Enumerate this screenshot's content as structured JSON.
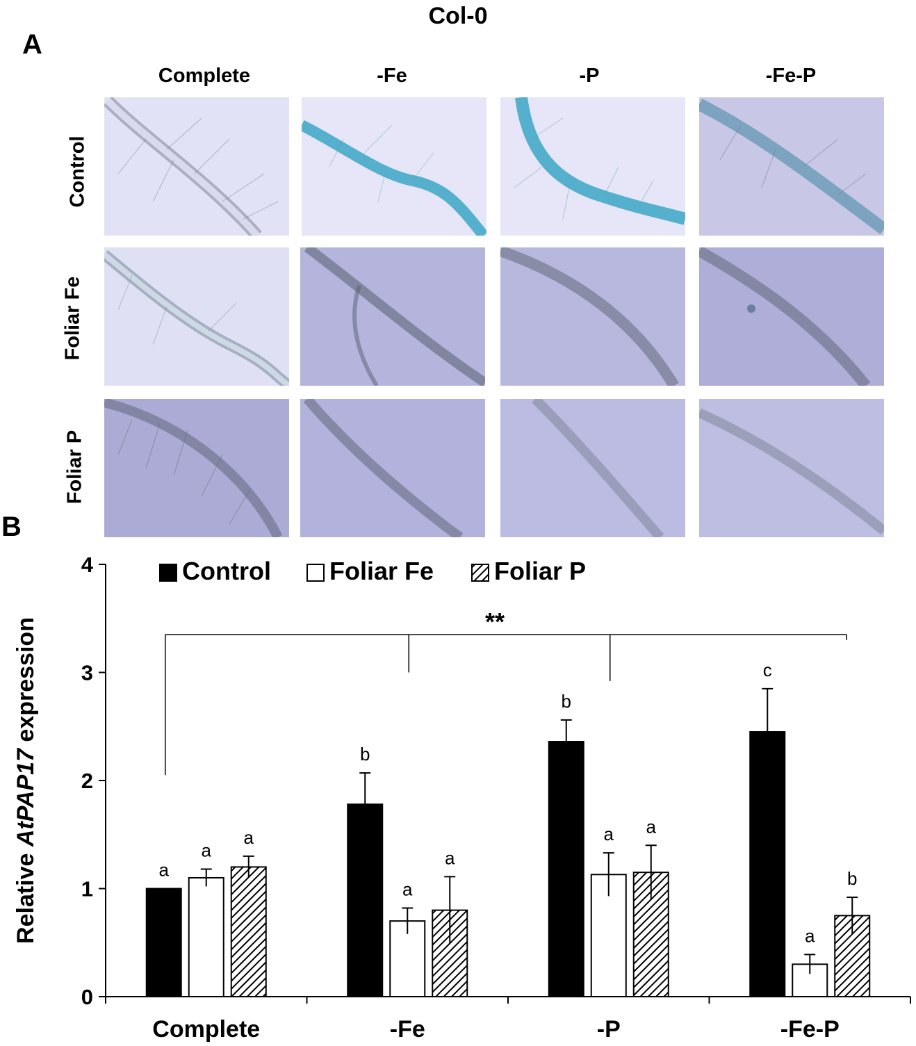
{
  "figure_title": "Col-0",
  "panel_a": {
    "letter": "A",
    "columns": [
      "Complete",
      "-Fe",
      "-P",
      "-Fe-P"
    ],
    "rows": [
      "Control",
      "Foliar Fe",
      "Foliar P"
    ],
    "colors": {
      "light_background": "#e0e0f4",
      "medium_background": "#b8b8de",
      "dark_background": "#a9a9d6",
      "root_outline": "#6a7080",
      "gus_stain_blue": "#3aa6c4"
    }
  },
  "panel_b": {
    "letter": "B"
  },
  "chart_data": {
    "type": "bar",
    "title": "",
    "xlabel": "",
    "ylabel": "Relative AtPAP17 expression",
    "ylabel_parts": {
      "prefix": "Relative ",
      "gene": "AtPAP17",
      "suffix": " expression"
    },
    "ylim": [
      0,
      4
    ],
    "yticks": [
      0,
      1,
      2,
      3,
      4
    ],
    "categories": [
      "Complete",
      "-Fe",
      "-P",
      "-Fe-P"
    ],
    "legend_position": "top-left",
    "series": [
      {
        "name": "Control",
        "fill": "solid",
        "values": [
          1.0,
          1.78,
          2.36,
          2.45
        ],
        "errors": [
          0,
          0.29,
          0.2,
          0.4
        ],
        "letters": [
          "a",
          "b",
          "b",
          "c"
        ]
      },
      {
        "name": "Foliar Fe",
        "fill": "white",
        "values": [
          1.1,
          0.7,
          1.13,
          0.3
        ],
        "errors": [
          0.08,
          0.12,
          0.2,
          0.09
        ],
        "letters": [
          "a",
          "a",
          "a",
          "a"
        ]
      },
      {
        "name": "Foliar P",
        "fill": "hatched",
        "values": [
          1.2,
          0.8,
          1.15,
          0.75
        ],
        "errors": [
          0.1,
          0.31,
          0.25,
          0.17
        ],
        "letters": [
          "a",
          "a",
          "a",
          "b"
        ]
      }
    ],
    "significance": {
      "label": "**",
      "bracket_value": 3.35,
      "drops_to": [
        2.05,
        3.0,
        2.92,
        3.3
      ]
    },
    "colors": {
      "bar": "#000000",
      "background": "#ffffff"
    }
  }
}
